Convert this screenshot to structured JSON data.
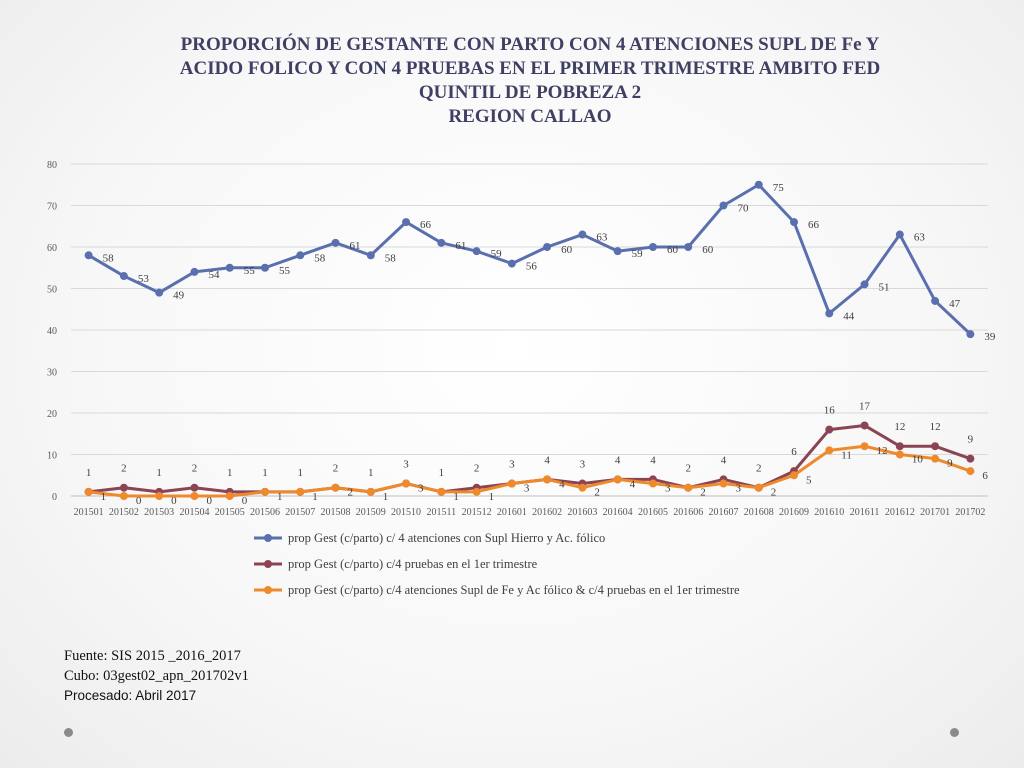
{
  "title": [
    "PROPORCIÓN DE GESTANTE  CON PARTO CON 4 ATENCIONES SUPL DE Fe Y",
    "ACIDO FOLICO  Y CON 4 PRUEBAS EN EL PRIMER TRIMESTRE AMBITO FED",
    "QUINTIL DE POBREZA 2",
    "REGION CALLAO"
  ],
  "source": {
    "line1": "Fuente: SIS 2015 _2016_2017",
    "line2": "Cubo:  03gest02_apn_201702v1",
    "line3": "Procesado: Abril 2017"
  },
  "chart_data": {
    "type": "line",
    "categories": [
      "201501",
      "201502",
      "201503",
      "201504",
      "201505",
      "201506",
      "201507",
      "201508",
      "201509",
      "201510",
      "201511",
      "201512",
      "201601",
      "201602",
      "201603",
      "201604",
      "201605",
      "201606",
      "201607",
      "201608",
      "201609",
      "201610",
      "201611",
      "201612",
      "201701",
      "201702"
    ],
    "ylim": [
      0,
      80
    ],
    "yticks": [
      0,
      10,
      20,
      30,
      40,
      50,
      60,
      70,
      80
    ],
    "grid": true,
    "legend_position": "bottom",
    "series": [
      {
        "name": "prop Gest (c/parto) c/ 4 atenciones con Supl Hierro y Ac. fólico",
        "color": "#5a6fae",
        "values": [
          58,
          53,
          49,
          54,
          55,
          55,
          58,
          61,
          58,
          66,
          61,
          59,
          56,
          60,
          63,
          59,
          60,
          60,
          70,
          75,
          66,
          44,
          51,
          63,
          47,
          39
        ]
      },
      {
        "name": "prop Gest (c/parto) c/4 pruebas en el 1er trimestre",
        "color": "#8b4453",
        "values": [
          1,
          2,
          1,
          2,
          1,
          1,
          1,
          2,
          1,
          3,
          1,
          2,
          3,
          4,
          3,
          4,
          4,
          2,
          4,
          2,
          6,
          16,
          17,
          12,
          12,
          9
        ]
      },
      {
        "name": "prop Gest (c/parto) c/4 atenciones Supl de Fe y Ac fólico & c/4 pruebas en el 1er trimestre",
        "color": "#ee8a2b",
        "values": [
          1,
          0,
          0,
          0,
          0,
          1,
          1,
          2,
          1,
          3,
          1,
          1,
          3,
          4,
          2,
          4,
          3,
          2,
          3,
          2,
          5,
          11,
          12,
          10,
          9,
          6
        ]
      }
    ]
  }
}
